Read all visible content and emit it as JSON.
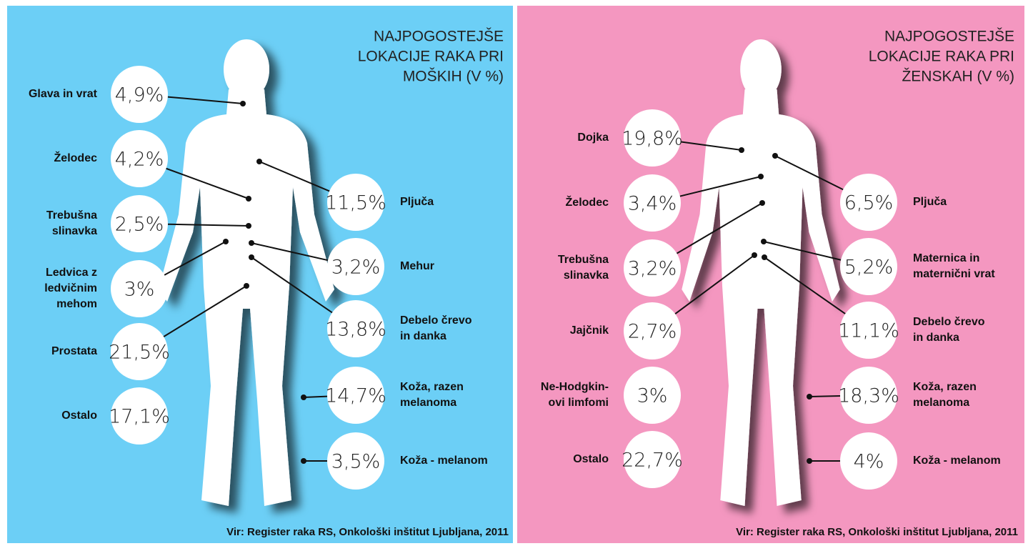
{
  "panels": [
    {
      "title": [
        "NAJPOGOSTEJŠE",
        "LOKACIJE RAKA PRI",
        "MOŠKIH  (V %)"
      ],
      "items": [
        {
          "label": [
            "Glava in vrat"
          ],
          "value": "4,9%"
        },
        {
          "label": [
            "Želodec"
          ],
          "value": "4,2%"
        },
        {
          "label": [
            "Trebušna",
            "slinavka"
          ],
          "value": "2,5%"
        },
        {
          "label": [
            "Ledvica z",
            "ledvičnim",
            "mehom"
          ],
          "value": "3%"
        },
        {
          "label": [
            "Prostata"
          ],
          "value": "21,5%"
        },
        {
          "label": [
            "Ostalo"
          ],
          "value": "17,1%"
        },
        {
          "label": [
            "Pljuča"
          ],
          "value": "11,5%"
        },
        {
          "label": [
            "Mehur"
          ],
          "value": "3,2%"
        },
        {
          "label": [
            "Debelo črevo",
            "in danka"
          ],
          "value": "13,8%"
        },
        {
          "label": [
            "Koža, razen",
            "melanoma"
          ],
          "value": "14,7%"
        },
        {
          "label": [
            "Koža - melanom"
          ],
          "value": "3,5%"
        }
      ],
      "source": "Vir: Register raka RS, Onkološki inštitut Ljubljana, 2011"
    },
    {
      "title": [
        "NAJPOGOSTEJŠE",
        "LOKACIJE RAKA PRI",
        "ŽENSKAH  (V %)"
      ],
      "items": [
        {
          "label": [
            "Dojka"
          ],
          "value": "19,8%"
        },
        {
          "label": [
            "Želodec"
          ],
          "value": "3,4%"
        },
        {
          "label": [
            "Trebušna",
            "slinavka"
          ],
          "value": "3,2%"
        },
        {
          "label": [
            "Jajčnik"
          ],
          "value": "2,7%"
        },
        {
          "label": [
            "Ne-Hodgkin-",
            "ovi limfomi"
          ],
          "value": "3%"
        },
        {
          "label": [
            "Ostalo"
          ],
          "value": "22,7%"
        },
        {
          "label": [
            "Pljuča"
          ],
          "value": "6,5%"
        },
        {
          "label": [
            "Maternica in",
            "maternični vrat"
          ],
          "value": "5,2%"
        },
        {
          "label": [
            "Debelo črevo",
            "in danka"
          ],
          "value": "11,1%"
        },
        {
          "label": [
            "Koža, razen",
            "melanoma"
          ],
          "value": "18,3%"
        },
        {
          "label": [
            "Koža - melanom"
          ],
          "value": "4%"
        }
      ],
      "source": "Vir: Register raka RS, Onkološki inštitut Ljubljana, 2011"
    }
  ]
}
